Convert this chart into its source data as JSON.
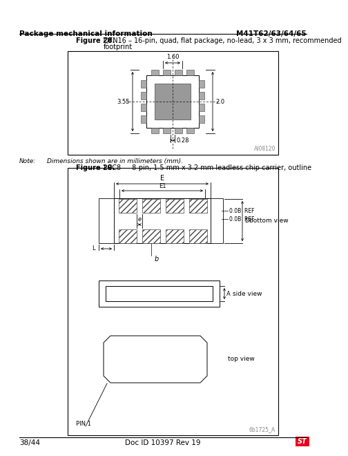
{
  "title_left": "Package mechanical information",
  "title_right": "M41T62/63/64/65",
  "fig28_label": "Figure 28.",
  "fig28_desc1": "QFN16 – 16-pin, quad, flat package, no-lead, 3 x 3 mm, recommended",
  "fig28_desc2": "footprint",
  "fig28_code": "AI08120",
  "fig28_dim1": "1.60",
  "fig28_dim2": "3.55",
  "fig28_dim3": "2.0",
  "fig28_dim4": "0.28",
  "note_label": "Note:",
  "note_text": "Dimensions shown are in millimeters (mm).",
  "fig29_label": "Figure 29.",
  "fig29_desc": "LCC8 — 8-pin, 1.5 mm x 3.2 mm leadless chip carrier, outline",
  "fig29_code": "6b1725_A",
  "label_E": "E",
  "label_E1": "E1",
  "label_e": "e",
  "label_0B1": "0.0B  REF",
  "label_0B2": "0.0B  REF",
  "label_L": "L",
  "label_b": "b",
  "label_D": "D",
  "label_A": "A",
  "view_bottom": "bottom view",
  "view_side": "side view",
  "view_top": "top view",
  "label_pin1": "PIN 1",
  "footer_left": "38/44",
  "footer_center": "Doc ID 10397 Rev 19",
  "footer_logo_color": "#e8001c",
  "bg_color": "#ffffff",
  "lc": "#000000",
  "tc": "#000000",
  "pad_gray": "#aaaaaa",
  "thermal_gray": "#999999"
}
